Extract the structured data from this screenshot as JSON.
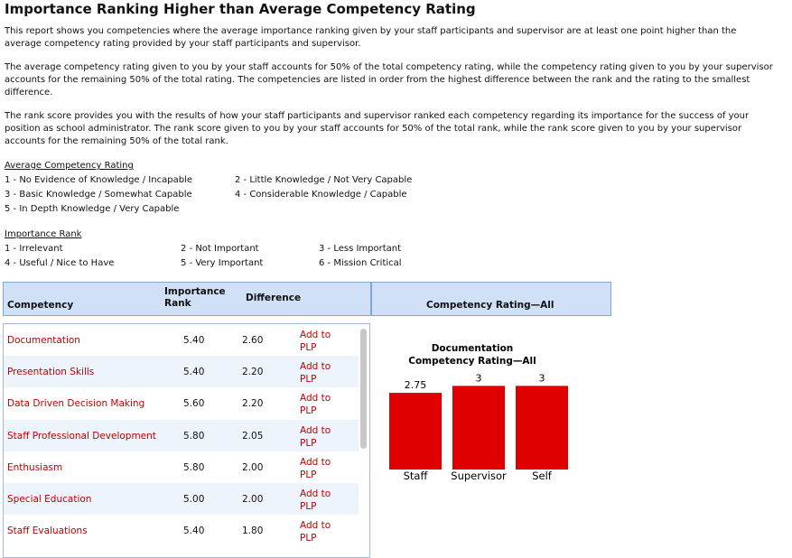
{
  "header": {
    "title": "Importance Ranking Higher than Average Competency Rating"
  },
  "paragraphs": [
    [
      "This report shows you competencies where the average importance ranking given by your staff participants and supervisor are at least one point higher than the",
      "average competency rating provided by your staff participants and supervisor."
    ],
    [
      "The average competency rating given to you by your staff accounts for 50% of the total competency rating, while the competency rating given to you by your supervisor",
      "accounts for the remaining 50% of the total rating. The competencies are listed in order from the highest difference between the rank and the rating to the smallest",
      "difference."
    ],
    [
      "The rank score provides you with the results of how your staff participants and supervisor ranked each competency regarding its importance for the success of your",
      "position as school administrator. The rank score given to you by your staff accounts for 50% of the total rank, while the rank score given to you by your supervisor",
      "accounts for the remaining 50% of the total rank."
    ]
  ],
  "legends": [
    {
      "title": "Average Competency Rating",
      "items": [
        "1 - No Evidence of Knowledge / Incapable",
        "2 - Little Knowledge / Not Very Capable",
        "3 - Basic Knowledge / Somewhat Capable",
        "4 - Considerable Knowledge / Capable",
        "5 - In Depth Knowledge / Very Capable"
      ]
    },
    {
      "title": "Importance Rank",
      "items": [
        "1 - Irrelevant",
        "2 - Not Important",
        "3 - Less Important",
        "4 - Useful / Nice to Have",
        "5 - Very Important",
        "6 - Mission Critical"
      ]
    }
  ],
  "table": {
    "columns": [
      "Competency",
      "Importance Rank",
      "Difference",
      "Competency Rating—All"
    ],
    "action": "Add to PLP",
    "rows": [
      [
        "Documentation",
        "5.40",
        "2.60"
      ],
      [
        "Presentation Skills",
        "5.40",
        "2.20"
      ],
      [
        "Data Driven Decision Making",
        "5.60",
        "2.20"
      ],
      [
        "Staff Professional Development",
        "5.80",
        "2.05"
      ],
      [
        "Enthusiasm",
        "5.80",
        "2.00"
      ],
      [
        "Special Education",
        "5.00",
        "2.00"
      ],
      [
        "Staff Evaluations",
        "5.40",
        "1.80"
      ]
    ]
  },
  "chart_data": {
    "type": "bar",
    "title": "Documentation",
    "subtitle": "Competency Rating—All",
    "categories": [
      "Staff",
      "Supervisor",
      "Self"
    ],
    "values": [
      2.75,
      3,
      3
    ],
    "color": "#e00000",
    "ylim": [
      0,
      3.4
    ]
  }
}
